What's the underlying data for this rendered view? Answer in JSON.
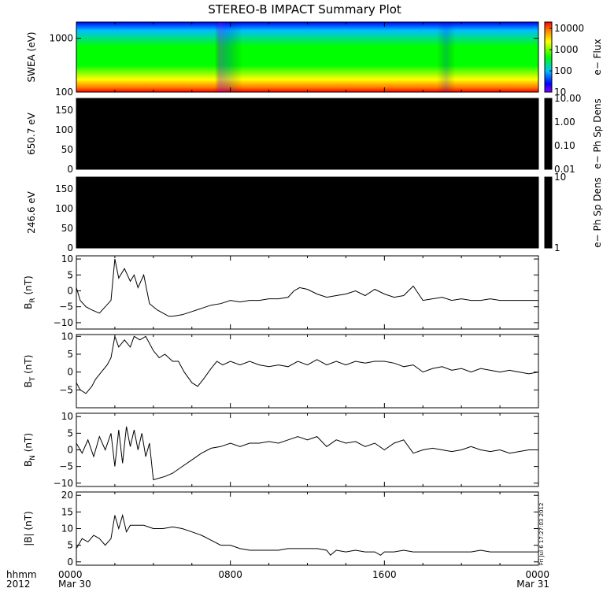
{
  "title": "STEREO-B IMPACT Summary Plot",
  "timestamp": "Fri Jul  6 17:27:03 2012",
  "x_axis": {
    "label_lines": [
      "hhmm",
      "2012"
    ],
    "ticks": [
      {
        "hour": 0,
        "lines": [
          "0000",
          "Mar 30"
        ]
      },
      {
        "hour": 8,
        "lines": [
          "0800",
          ""
        ]
      },
      {
        "hour": 16,
        "lines": [
          "1600",
          ""
        ]
      },
      {
        "hour": 24,
        "lines": [
          "0000",
          "Mar 31"
        ]
      }
    ],
    "range_hours": [
      0,
      24
    ]
  },
  "chart_data": [
    {
      "type": "heatmap",
      "name": "swea",
      "ylabel": "SWEA (eV)",
      "yscale": "log",
      "ylim": [
        100,
        2000
      ],
      "yticks": [
        {
          "v": 100,
          "t": "100"
        },
        {
          "v": 1000,
          "t": "1000"
        }
      ],
      "colorbar": {
        "label": "e− Flux",
        "scale": "log",
        "range": [
          10,
          20000
        ],
        "ticks": [
          {
            "v": 10,
            "t": "10"
          },
          {
            "v": 100,
            "t": "100"
          },
          {
            "v": 1000,
            "t": "1000"
          },
          {
            "v": 10000,
            "t": "10000"
          }
        ]
      },
      "colors": [
        "#ff0000",
        "#ff8000",
        "#ffff00",
        "#00ff00",
        "#00c0ff",
        "#0000ff",
        "#8000ff"
      ]
    },
    {
      "type": "heatmap",
      "name": "ph-650",
      "ylabel": "650.7 eV",
      "ylim": [
        0,
        180
      ],
      "yticks": [
        {
          "v": 0,
          "t": "0"
        },
        {
          "v": 50,
          "t": "50"
        },
        {
          "v": 100,
          "t": "100"
        },
        {
          "v": 150,
          "t": "150"
        }
      ],
      "fill": "#000000",
      "colorbar": {
        "label": "e− Ph Sp Dens",
        "scale": "log",
        "range": [
          0.01,
          10
        ],
        "ticks": [
          {
            "v": 0.01,
            "t": "0.01"
          },
          {
            "v": 0.1,
            "t": "0.10"
          },
          {
            "v": 1,
            "t": "1.00"
          },
          {
            "v": 10,
            "t": "10.00"
          }
        ]
      }
    },
    {
      "type": "heatmap",
      "name": "ph-246",
      "ylabel": "246.6 eV",
      "ylim": [
        0,
        180
      ],
      "yticks": [
        {
          "v": 0,
          "t": "0"
        },
        {
          "v": 50,
          "t": "50"
        },
        {
          "v": 100,
          "t": "100"
        },
        {
          "v": 150,
          "t": "150"
        }
      ],
      "fill": "#000000",
      "colorbar": {
        "label": "e− Ph Sp Dens",
        "scale": "log",
        "range": [
          1,
          10
        ],
        "ticks": [
          {
            "v": 1,
            "t": "1"
          },
          {
            "v": 10,
            "t": "10"
          }
        ]
      }
    },
    {
      "type": "line",
      "name": "br",
      "ylabel": {
        "base": "B",
        "sub": "R",
        "unit": " (nT)"
      },
      "ylim": [
        -12,
        11
      ],
      "yticks": [
        {
          "v": -10,
          "t": "−10"
        },
        {
          "v": -5,
          "t": "−5"
        },
        {
          "v": 0,
          "t": "0"
        },
        {
          "v": 5,
          "t": "5"
        },
        {
          "v": 10,
          "t": "10"
        }
      ],
      "x": [
        0,
        0.2,
        0.5,
        0.8,
        1.0,
        1.2,
        1.5,
        1.8,
        2.0,
        2.2,
        2.5,
        2.8,
        3.0,
        3.2,
        3.5,
        3.8,
        4.0,
        4.2,
        4.5,
        4.8,
        5.0,
        5.5,
        6.0,
        6.5,
        7.0,
        7.5,
        8.0,
        8.5,
        9.0,
        9.5,
        10.0,
        10.5,
        11.0,
        11.3,
        11.6,
        12.0,
        12.5,
        13.0,
        13.5,
        14.0,
        14.5,
        15.0,
        15.5,
        16.0,
        16.5,
        17.0,
        17.5,
        18.0,
        18.5,
        19.0,
        19.5,
        20.0,
        20.5,
        21.0,
        21.5,
        22.0,
        22.5,
        23.0,
        23.5,
        24.0
      ],
      "y": [
        1,
        -3,
        -5,
        -6,
        -6.5,
        -7,
        -5,
        -3,
        10,
        4,
        7,
        3,
        5,
        1,
        5,
        -4,
        -5,
        -6,
        -7,
        -8,
        -8,
        -7.5,
        -6.5,
        -5.5,
        -4.5,
        -4,
        -3,
        -3.5,
        -3,
        -3,
        -2.5,
        -2.5,
        -2,
        0,
        1,
        0.5,
        -1,
        -2,
        -1.5,
        -1,
        0,
        -1.5,
        0.5,
        -1,
        -2,
        -1.5,
        1.5,
        -3,
        -2.5,
        -2,
        -3,
        -2.5,
        -3,
        -3,
        -2.5,
        -3,
        -3,
        -3,
        -3,
        -3
      ]
    },
    {
      "type": "line",
      "name": "bt",
      "ylabel": {
        "base": "B",
        "sub": "T",
        "unit": " (nT)"
      },
      "ylim": [
        -10,
        10.5
      ],
      "yticks": [
        {
          "v": -5,
          "t": "−5"
        },
        {
          "v": 0,
          "t": "0"
        },
        {
          "v": 5,
          "t": "5"
        },
        {
          "v": 10,
          "t": "10"
        }
      ],
      "x": [
        0,
        0.2,
        0.5,
        0.8,
        1.0,
        1.3,
        1.6,
        1.8,
        2.0,
        2.2,
        2.5,
        2.8,
        3.0,
        3.3,
        3.6,
        4.0,
        4.3,
        4.6,
        5.0,
        5.3,
        5.6,
        6.0,
        6.3,
        6.6,
        7.0,
        7.3,
        7.6,
        8.0,
        8.5,
        9.0,
        9.5,
        10.0,
        10.5,
        11.0,
        11.5,
        12.0,
        12.5,
        13.0,
        13.5,
        14.0,
        14.5,
        15.0,
        15.5,
        16.0,
        16.5,
        17.0,
        17.5,
        18.0,
        18.5,
        19.0,
        19.5,
        20.0,
        20.5,
        21.0,
        21.5,
        22.0,
        22.5,
        23.0,
        23.5,
        24.0
      ],
      "y": [
        -3,
        -5,
        -6,
        -4,
        -2,
        0,
        2,
        4,
        10,
        7,
        9,
        7,
        10,
        9,
        10,
        6,
        4,
        5,
        3,
        3,
        0,
        -3,
        -4,
        -2,
        1,
        3,
        2,
        3,
        2,
        3,
        2,
        1.5,
        2,
        1.5,
        3,
        2,
        3.5,
        2,
        3,
        2,
        3,
        2.5,
        3,
        3,
        2.5,
        1.5,
        2,
        0,
        1,
        1.5,
        0.5,
        1,
        0,
        1,
        0.5,
        0,
        0.5,
        0,
        -0.5,
        0
      ]
    },
    {
      "type": "line",
      "name": "bn",
      "ylabel": {
        "base": "B",
        "sub": "N",
        "unit": " (nT)"
      },
      "ylim": [
        -11,
        11
      ],
      "yticks": [
        {
          "v": -10,
          "t": "−10"
        },
        {
          "v": -5,
          "t": "−5"
        },
        {
          "v": 0,
          "t": "0"
        },
        {
          "v": 5,
          "t": "5"
        },
        {
          "v": 10,
          "t": "10"
        }
      ],
      "x": [
        0,
        0.3,
        0.6,
        0.9,
        1.2,
        1.5,
        1.8,
        2.0,
        2.2,
        2.4,
        2.6,
        2.8,
        3.0,
        3.2,
        3.4,
        3.6,
        3.8,
        4.0,
        4.3,
        4.6,
        5.0,
        5.5,
        6.0,
        6.5,
        7.0,
        7.5,
        8.0,
        8.5,
        9.0,
        9.5,
        10.0,
        10.5,
        11.0,
        11.5,
        12.0,
        12.5,
        13.0,
        13.5,
        14.0,
        14.5,
        15.0,
        15.5,
        16.0,
        16.5,
        17.0,
        17.5,
        18.0,
        18.5,
        19.0,
        19.5,
        20.0,
        20.5,
        21.0,
        21.5,
        22.0,
        22.5,
        23.0,
        23.5,
        24.0
      ],
      "y": [
        2,
        -1,
        3,
        -2,
        4,
        0,
        5,
        -5,
        6,
        -4,
        7,
        1,
        6,
        0,
        5,
        -2,
        2,
        -9,
        -8.5,
        -8,
        -7,
        -5,
        -3,
        -1,
        0.5,
        1,
        2,
        1,
        2,
        2,
        2.5,
        2,
        3,
        4,
        3,
        4,
        1,
        3,
        2,
        2.5,
        1,
        2,
        0,
        2,
        3,
        -1,
        0,
        0.5,
        0,
        -0.5,
        0,
        1,
        0,
        -0.5,
        0,
        -1,
        -0.5,
        0,
        0
      ]
    },
    {
      "type": "line",
      "name": "bmag",
      "ylabel": {
        "base": "|B|",
        "sub": "",
        "unit": " (nT)"
      },
      "ylim": [
        -1,
        21
      ],
      "yticks": [
        {
          "v": 0,
          "t": "0"
        },
        {
          "v": 5,
          "t": "5"
        },
        {
          "v": 10,
          "t": "10"
        },
        {
          "v": 15,
          "t": "15"
        },
        {
          "v": 20,
          "t": "20"
        }
      ],
      "x": [
        0,
        0.3,
        0.6,
        0.9,
        1.2,
        1.5,
        1.8,
        2.0,
        2.2,
        2.4,
        2.6,
        2.8,
        3.0,
        3.5,
        4.0,
        4.5,
        5.0,
        5.5,
        6.0,
        6.5,
        7.0,
        7.5,
        8.0,
        8.5,
        9.0,
        9.5,
        10.0,
        10.5,
        11.0,
        11.5,
        12.0,
        12.5,
        13.0,
        13.2,
        13.5,
        14.0,
        14.5,
        15.0,
        15.5,
        15.8,
        16.0,
        16.5,
        17.0,
        17.5,
        18.0,
        18.5,
        19.0,
        19.5,
        20.0,
        20.5,
        21.0,
        21.5,
        22.0,
        22.5,
        23.0,
        23.5,
        24.0
      ],
      "y": [
        4,
        7,
        6,
        8,
        7,
        5,
        7,
        14,
        10,
        14,
        9,
        11,
        11,
        11,
        10,
        10,
        10.5,
        10,
        9,
        8,
        6.5,
        5,
        5,
        4,
        3.5,
        3.5,
        3.5,
        3.5,
        4,
        4,
        4,
        4,
        3.5,
        2,
        3.5,
        3,
        3.5,
        3,
        3,
        2,
        3,
        3,
        3.5,
        3,
        3,
        3,
        3,
        3,
        3,
        3,
        3.5,
        3,
        3,
        3,
        3,
        3,
        3
      ]
    }
  ]
}
